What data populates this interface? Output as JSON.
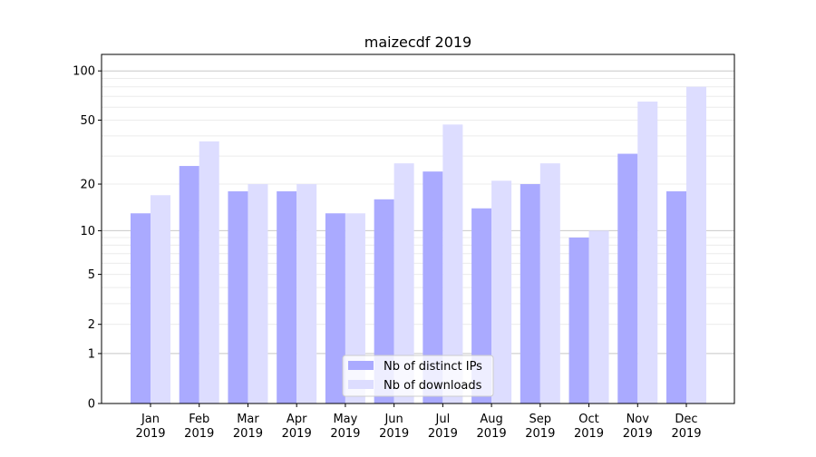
{
  "chart_data": {
    "type": "bar",
    "title": "maizecdf 2019",
    "xlabel": "",
    "ylabel": "",
    "yscale": "log(1+y)",
    "ylim": [
      0,
      126
    ],
    "yticks": [
      0,
      1,
      2,
      5,
      10,
      20,
      50,
      100
    ],
    "ytick_labels": [
      "0",
      "1",
      "2",
      "5",
      "10",
      "20",
      "50",
      "100"
    ],
    "grid": true,
    "legend_position": "bottom-center",
    "categories": [
      "Jan\n2019",
      "Feb\n2019",
      "Mar\n2019",
      "Apr\n2019",
      "May\n2019",
      "Jun\n2019",
      "Jul\n2019",
      "Aug\n2019",
      "Sep\n2019",
      "Oct\n2019",
      "Nov\n2019",
      "Dec\n2019"
    ],
    "series": [
      {
        "name": "Nb of distinct IPs",
        "color": "#aaaaff",
        "values": [
          13,
          26,
          18,
          18,
          13,
          16,
          24,
          14,
          20,
          9,
          31,
          18
        ]
      },
      {
        "name": "Nb of downloads",
        "color": "#ddddff",
        "values": [
          17,
          37,
          20,
          20,
          13,
          27,
          47,
          21,
          27,
          10,
          65,
          80
        ]
      }
    ]
  }
}
